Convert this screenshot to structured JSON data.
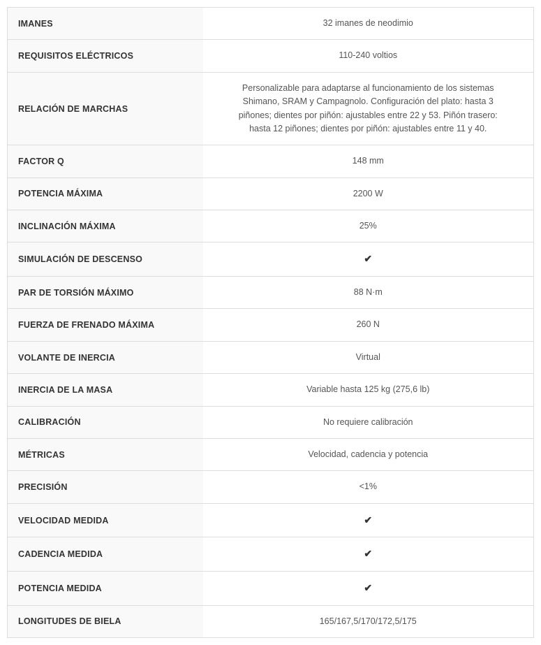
{
  "table": {
    "border_color": "#dddddd",
    "label_bg": "#f9f9f9",
    "label_color": "#333333",
    "value_color": "#555555",
    "label_fontsize": 12.5,
    "value_fontsize": 12.5,
    "rows": [
      {
        "label": "IMANES",
        "value": "32 imanes de neodimio",
        "is_check": false
      },
      {
        "label": "REQUISITOS ELÉCTRICOS",
        "value": "110-240 voltios",
        "is_check": false
      },
      {
        "label": "RELACIÓN DE MARCHAS",
        "value": "Personalizable para adaptarse al funcionamiento de los sistemas Shimano, SRAM y Campagnolo. Configuración del plato: hasta 3 piñones; dientes por piñón: ajustables entre 22 y 53. Piñón trasero: hasta 12 piñones; dientes por piñón: ajustables entre 11 y 40.",
        "is_check": false,
        "is_long": true
      },
      {
        "label": "FACTOR Q",
        "value": "148 mm",
        "is_check": false
      },
      {
        "label": "POTENCIA MÁXIMA",
        "value": "2200 W",
        "is_check": false
      },
      {
        "label": "INCLINACIÓN MÁXIMA",
        "value": "25%",
        "is_check": false
      },
      {
        "label": "SIMULACIÓN DE DESCENSO",
        "value": "",
        "is_check": true
      },
      {
        "label": "PAR DE TORSIÓN MÁXIMO",
        "value": "88 N·m",
        "is_check": false
      },
      {
        "label": "FUERZA DE FRENADO MÁXIMA",
        "value": "260 N",
        "is_check": false
      },
      {
        "label": "VOLANTE DE INERCIA",
        "value": "Virtual",
        "is_check": false
      },
      {
        "label": "INERCIA DE LA MASA",
        "value": "Variable hasta 125 kg (275,6 lb)",
        "is_check": false
      },
      {
        "label": "CALIBRACIÓN",
        "value": "No requiere calibración",
        "is_check": false
      },
      {
        "label": "MÉTRICAS",
        "value": "Velocidad, cadencia y potencia",
        "is_check": false
      },
      {
        "label": "PRECISIÓN",
        "value": "<1%",
        "is_check": false
      },
      {
        "label": "VELOCIDAD MEDIDA",
        "value": "",
        "is_check": true
      },
      {
        "label": "CADENCIA MEDIDA",
        "value": "",
        "is_check": true
      },
      {
        "label": "POTENCIA MEDIDA",
        "value": "",
        "is_check": true
      },
      {
        "label": "LONGITUDES DE BIELA",
        "value": "165/167,5/170/172,5/175",
        "is_check": false
      }
    ]
  },
  "icons": {
    "check_glyph": "✔"
  }
}
